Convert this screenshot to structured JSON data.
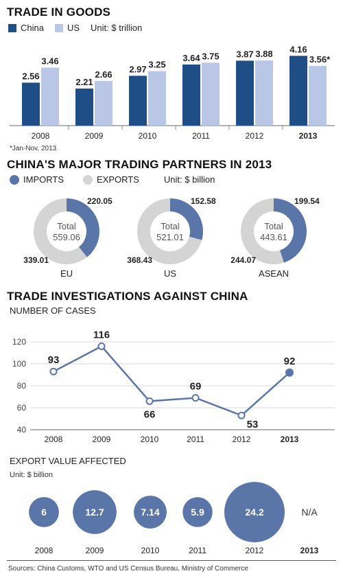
{
  "trade": {
    "title": "TRADE IN GOODS",
    "legend": [
      {
        "label": "China",
        "color": "#1f4e86"
      },
      {
        "label": "US",
        "color": "#b9c6e6"
      }
    ],
    "unit": "Unit: $ trillion",
    "footnote": "*Jan-Nov, 2013"
  },
  "partners": {
    "title": "CHINA'S MAJOR TRADING PARTNERS IN 2013",
    "legend": [
      {
        "label": "IMPORTS",
        "color": "#5a76a8"
      },
      {
        "label": "EXPORTS",
        "color": "#d4d4d4"
      }
    ],
    "unit": "Unit: $ billion",
    "total_word": "Total"
  },
  "investigations": {
    "title": "TRADE INVESTIGATIONS AGAINST CHINA",
    "cases_label": "NUMBER OF CASES",
    "export_label": "EXPORT VALUE AFFECTED",
    "export_unit": "Unit: $ billion"
  },
  "sources": "Sources: China Customs, WTO and US Census Bureau, Ministry of Commerce",
  "chart_data": [
    {
      "type": "bar",
      "title": "TRADE IN GOODS",
      "unit": "$ trillion",
      "categories": [
        "2008",
        "2009",
        "2010",
        "2011",
        "2012",
        "2013"
      ],
      "bold_categories": [
        "2013"
      ],
      "series": [
        {
          "name": "China",
          "color": "#1f4e86",
          "values": [
            2.56,
            2.21,
            2.97,
            3.64,
            3.87,
            4.16
          ],
          "labels": [
            "2.56",
            "2.21",
            "2.97",
            "3.64",
            "3.87",
            "4.16"
          ]
        },
        {
          "name": "US",
          "color": "#b9c6e6",
          "values": [
            3.46,
            2.66,
            3.25,
            3.75,
            3.88,
            3.56
          ],
          "labels": [
            "3.46",
            "2.66",
            "3.25",
            "3.75",
            "3.88",
            "3.56*"
          ]
        }
      ],
      "ylim": [
        0,
        4.5
      ]
    },
    {
      "type": "pie",
      "title": "CHINA'S MAJOR TRADING PARTNERS IN 2013",
      "unit": "$ billion",
      "charts": [
        {
          "name": "EU",
          "total": "559.06",
          "imports": 220.05,
          "exports": 339.01
        },
        {
          "name": "US",
          "total": "521.01",
          "imports": 152.58,
          "exports": 368.43
        },
        {
          "name": "ASEAN",
          "total": "443.61",
          "imports": 199.54,
          "exports": 244.07
        }
      ],
      "colors": {
        "imports": "#5a76a8",
        "exports": "#d4d4d4"
      }
    },
    {
      "type": "line",
      "title": "NUMBER OF CASES",
      "x": [
        "2008",
        "2009",
        "2010",
        "2011",
        "2012",
        "2013"
      ],
      "bold_x": [
        "2013"
      ],
      "values": [
        93,
        116,
        66,
        69,
        53,
        92
      ],
      "ylim": [
        40,
        120
      ],
      "yticks": [
        40,
        60,
        80,
        100,
        120
      ],
      "grid": true,
      "color": "#5a76a8"
    },
    {
      "type": "scatter",
      "title": "EXPORT VALUE AFFECTED",
      "unit": "$ billion",
      "x": [
        "2008",
        "2009",
        "2010",
        "2011",
        "2012",
        "2013"
      ],
      "bold_x": [
        "2013"
      ],
      "values": [
        6,
        12.7,
        7.14,
        5.9,
        24.2,
        null
      ],
      "labels": [
        "6",
        "12.7",
        "7.14",
        "5.9",
        "24.2",
        "N/A"
      ],
      "color": "#5a76a8"
    }
  ]
}
